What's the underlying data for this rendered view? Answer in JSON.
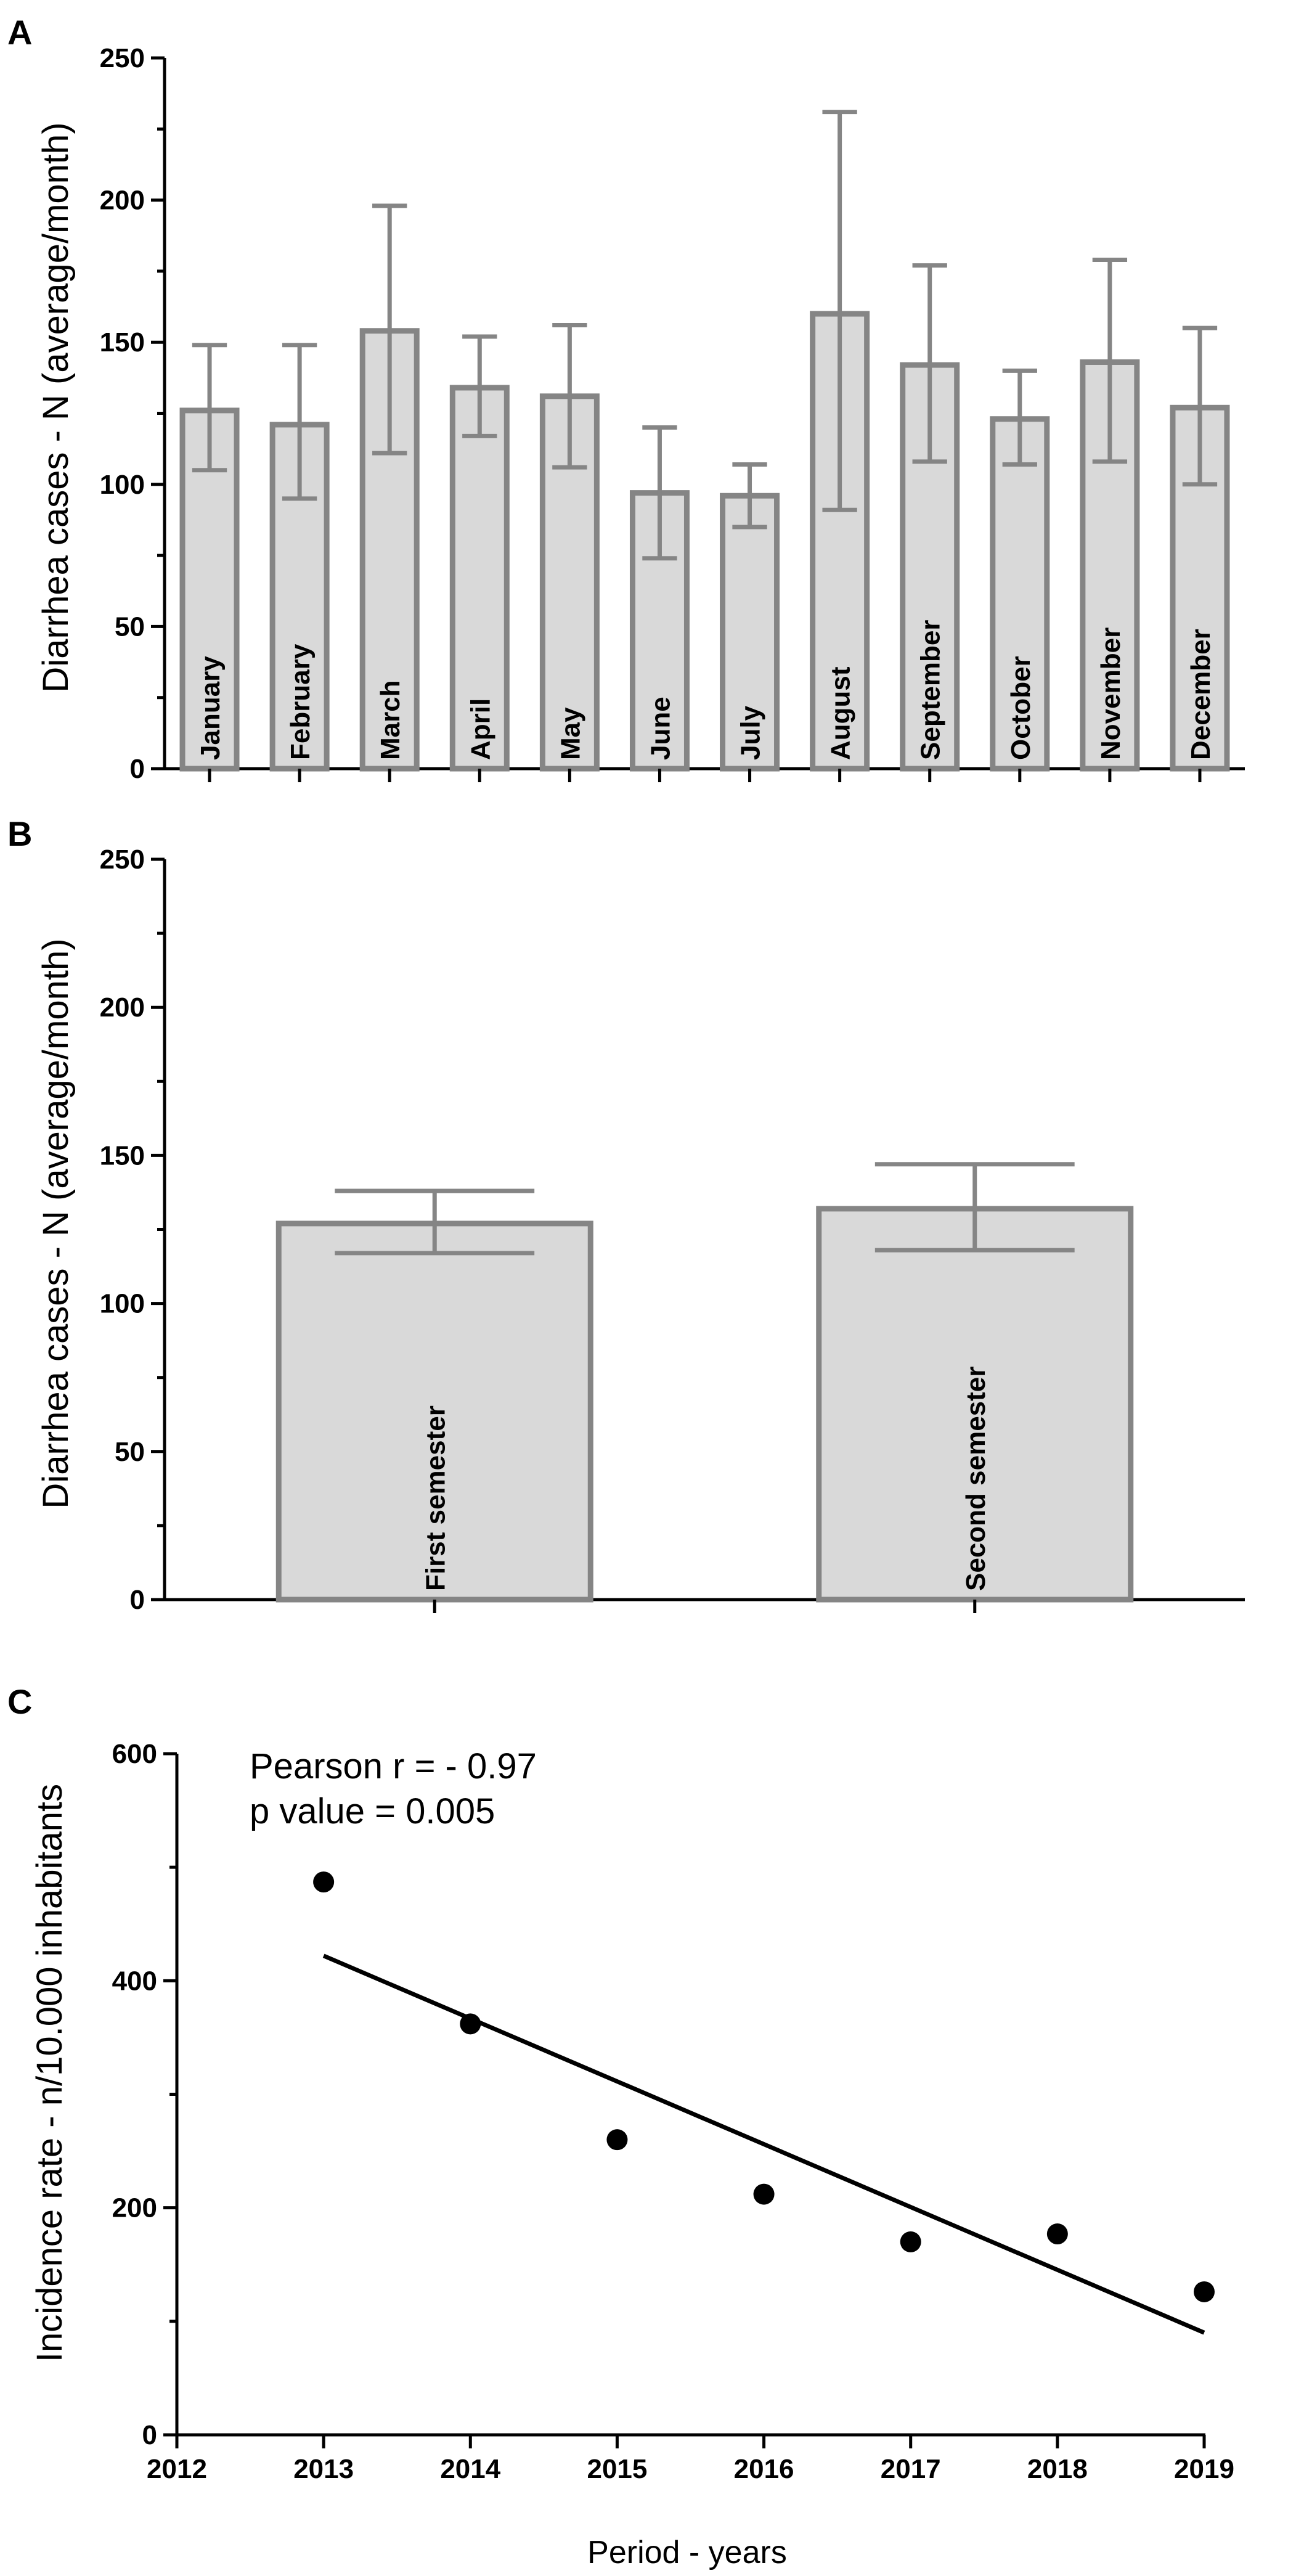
{
  "chart_data": [
    {
      "panel": "A",
      "type": "bar",
      "ylabel": "Diarrhea cases - N (average/month)",
      "ylim": [
        0,
        250
      ],
      "yticks": [
        0,
        50,
        100,
        150,
        200,
        250
      ],
      "categories": [
        "January",
        "February",
        "March",
        "April",
        "May",
        "June",
        "July",
        "August",
        "September",
        "October",
        "November",
        "December"
      ],
      "values": [
        126,
        121,
        154,
        134,
        131,
        97,
        96,
        160,
        142,
        123,
        143,
        127
      ],
      "error_low": [
        105,
        95,
        111,
        117,
        106,
        74,
        85,
        91,
        108,
        107,
        108,
        100
      ],
      "error_high": [
        149,
        149,
        198,
        152,
        156,
        120,
        107,
        231,
        177,
        140,
        179,
        155
      ]
    },
    {
      "panel": "B",
      "type": "bar",
      "ylabel": "Diarrhea cases - N (average/month)",
      "ylim": [
        0,
        250
      ],
      "yticks": [
        0,
        50,
        100,
        150,
        200,
        250
      ],
      "categories": [
        "First semester",
        "Second semester"
      ],
      "values": [
        127,
        132
      ],
      "error_low": [
        117,
        118
      ],
      "error_high": [
        138,
        147
      ]
    },
    {
      "panel": "C",
      "type": "scatter",
      "xlabel": "Period - years",
      "ylabel": "Incidence rate - n/10.000 inhabitants",
      "xlim": [
        2012,
        2019
      ],
      "ylim": [
        0,
        600
      ],
      "xticks": [
        2012,
        2013,
        2014,
        2015,
        2016,
        2017,
        2018,
        2019
      ],
      "yticks": [
        0,
        200,
        400,
        600
      ],
      "x": [
        2013,
        2014,
        2015,
        2016,
        2017,
        2018,
        2019
      ],
      "y": [
        487,
        362,
        260,
        212,
        170,
        177,
        126
      ],
      "regression": {
        "x": [
          2013,
          2019
        ],
        "y": [
          422,
          90
        ]
      },
      "annotations": [
        "Pearson r = - 0.97",
        "p value = 0.005"
      ]
    }
  ]
}
